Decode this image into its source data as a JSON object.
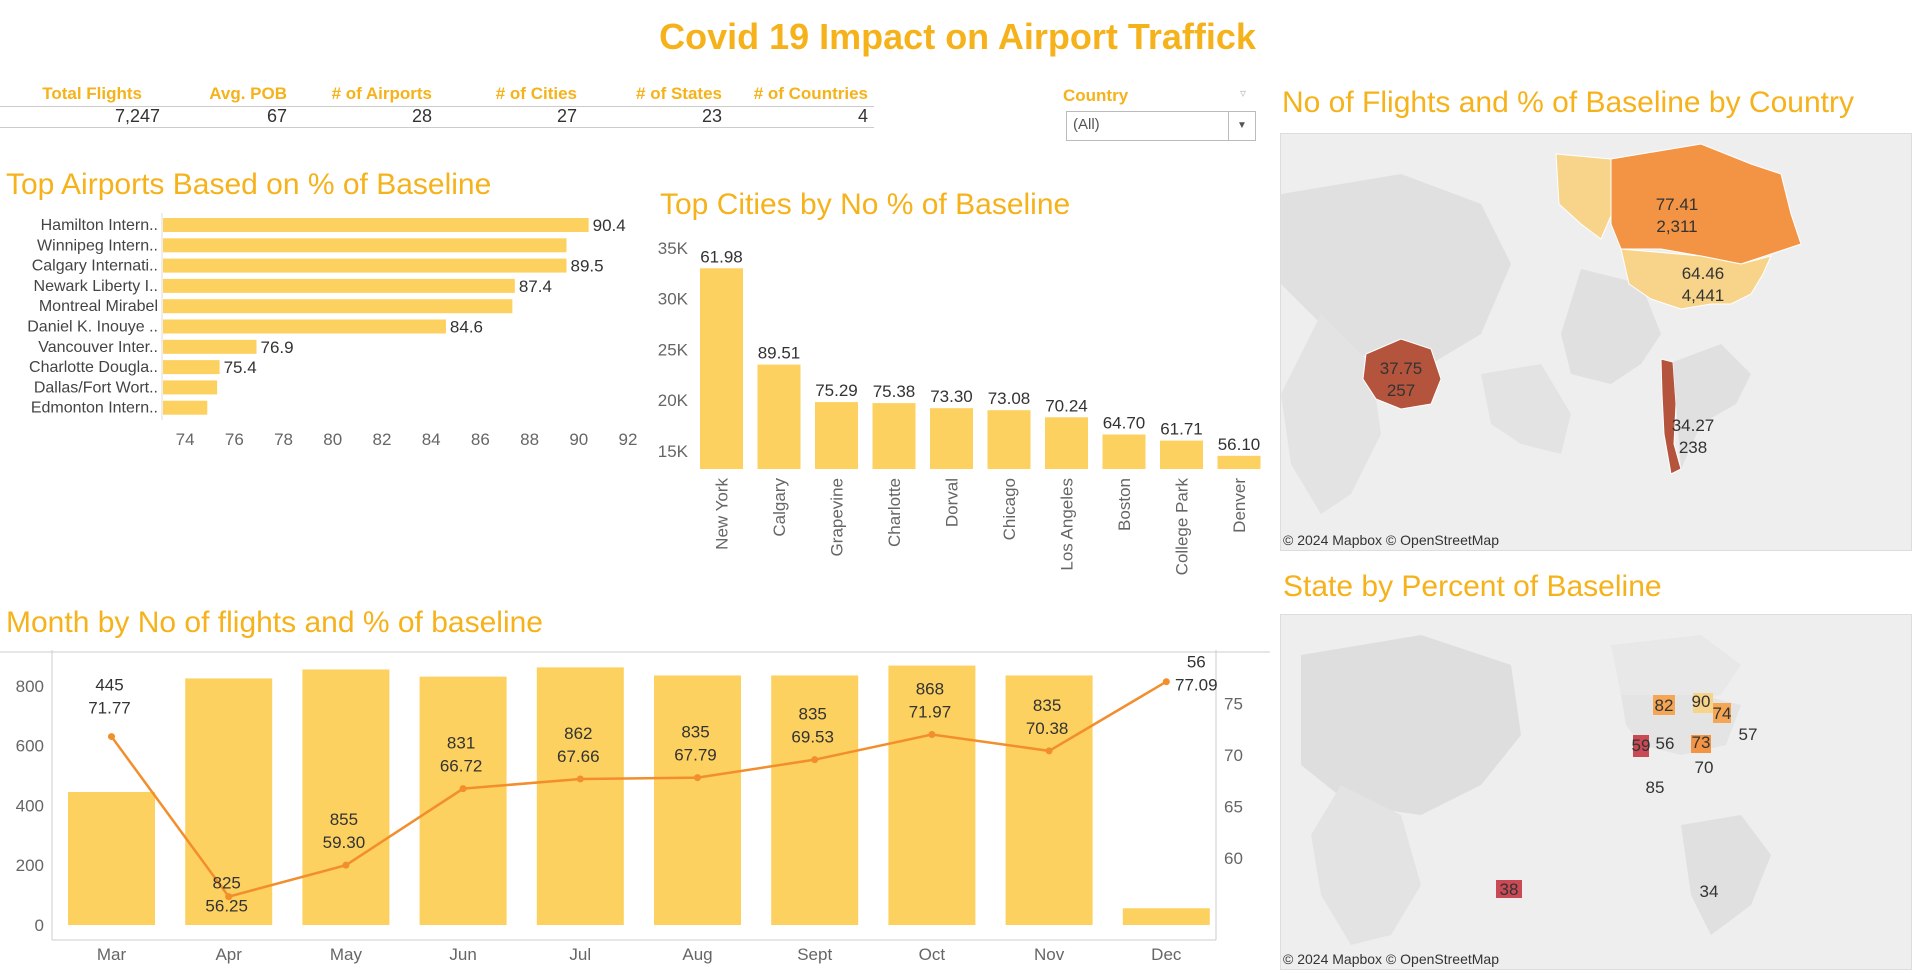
{
  "title": "Covid 19 Impact on Airport Traffick",
  "kpis": [
    {
      "label": "Total Flights",
      "value": "7,247"
    },
    {
      "label": "Avg. POB",
      "value": "67"
    },
    {
      "label": "# of Airports",
      "value": "28"
    },
    {
      "label": "# of Cities",
      "value": "27"
    },
    {
      "label": "# of States",
      "value": "23"
    },
    {
      "label": "# of Countries",
      "value": "4"
    }
  ],
  "filter": {
    "label": "Country",
    "value": "(All)"
  },
  "sections": {
    "airports": "Top Airports  Based on % of Baseline",
    "cities": "Top Cities by No % of Baseline",
    "months": "Month by No of flights and % of baseline",
    "country_map": "No of Flights and % of Baseline by Country",
    "state_map": "State by Percent of Baseline"
  },
  "map_credit": "© 2024 Mapbox © OpenStreetMap",
  "colors": {
    "bar": "#FDD15F",
    "line": "#F28E2B",
    "title": "#F5B21B",
    "map_dark": "#B5543D",
    "map_orange": "#F39445",
    "map_light": "#F7D48A"
  },
  "chart_data": [
    {
      "type": "bar",
      "orientation": "horizontal",
      "categories": [
        "Hamilton Intern..",
        "Winnipeg Intern..",
        "Calgary Internati..",
        "Newark Liberty I..",
        "Montreal Mirabel",
        "Daniel K. Inouye ..",
        "Vancouver Inter..",
        "Charlotte Dougla..",
        "Dallas/Fort Wort..",
        "Edmonton Intern.."
      ],
      "values": [
        90.4,
        89.5,
        89.5,
        87.4,
        87.3,
        84.6,
        76.9,
        75.4,
        75.3,
        74.9
      ],
      "value_labels": [
        "90.4",
        "",
        "89.5",
        "87.4",
        "",
        "84.6",
        "76.9",
        "75.4",
        "",
        ""
      ],
      "ticks": [
        "74",
        "76",
        "78",
        "80",
        "82",
        "84",
        "86",
        "88",
        "90",
        "92"
      ],
      "xlim": [
        73.1,
        92
      ]
    },
    {
      "type": "bar",
      "categories": [
        "New York",
        "Calgary",
        "Grapevine",
        "Charlotte",
        "Dorval",
        "Chicago",
        "Los Angeles",
        "Boston",
        "College Park",
        "Denver"
      ],
      "values": [
        33000,
        23500,
        19800,
        19700,
        19200,
        19000,
        18300,
        16600,
        16000,
        14500
      ],
      "labels": [
        "61.98",
        "89.51",
        "75.29",
        "75.38",
        "73.30",
        "73.08",
        "70.24",
        "64.70",
        "61.71",
        "56.10"
      ],
      "ticks": [
        "15K",
        "20K",
        "25K",
        "30K",
        "35K"
      ],
      "ylim": [
        13200,
        35000
      ]
    },
    {
      "type": "bar",
      "categories": [
        "Mar",
        "Apr",
        "May",
        "Jun",
        "Jul",
        "Aug",
        "Sept",
        "Oct",
        "Nov",
        "Dec"
      ],
      "series": [
        {
          "values": [
            445,
            825,
            855,
            831,
            862,
            835,
            835,
            868,
            835,
            56
          ]
        },
        {
          "values": [
            71.77,
            56.25,
            59.3,
            66.72,
            67.66,
            67.79,
            69.53,
            71.97,
            70.38,
            77.09
          ]
        }
      ],
      "labels_count": [
        "445",
        "825",
        "855",
        "831",
        "862",
        "835",
        "835",
        "868",
        "835",
        "56"
      ],
      "labels_pct": [
        "71.77",
        "56.25",
        "59.30",
        "66.72",
        "67.66",
        "67.79",
        "69.53",
        "71.97",
        "70.38",
        "77.09"
      ],
      "y_ticks": [
        "0",
        "200",
        "400",
        "600",
        "800"
      ],
      "y2_ticks": [
        "60",
        "65",
        "70",
        "75"
      ],
      "ylim": [
        0,
        880
      ],
      "y2lim": [
        53.5,
        79
      ]
    }
  ],
  "country_map": {
    "regions": [
      {
        "name": "Canada",
        "pct": "77.41",
        "flights": "2,311"
      },
      {
        "name": "United States",
        "pct": "64.46",
        "flights": "4,441"
      },
      {
        "name": "Australia",
        "pct": "37.75",
        "flights": "257"
      },
      {
        "name": "Chile",
        "pct": "34.27",
        "flights": "238"
      }
    ]
  },
  "state_map": {
    "labels": [
      "82",
      "90",
      "74",
      "57",
      "59",
      "56",
      "73",
      "70",
      "85",
      "38",
      "34"
    ]
  }
}
